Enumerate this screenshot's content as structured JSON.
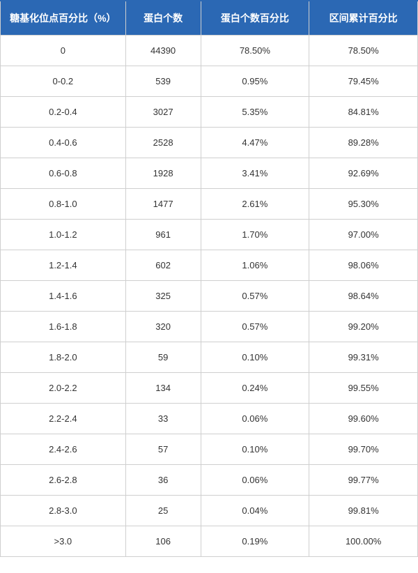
{
  "table": {
    "header_bg": "#2b68b4",
    "header_fg": "#ffffff",
    "border_color": "#cfcfcf",
    "cell_bg": "#ffffff",
    "cell_fg": "#333333",
    "header_fontsize": 14,
    "cell_fontsize": 13,
    "col_widths_percent": [
      30,
      18,
      26,
      26
    ],
    "columns": [
      "糖基化位点百分比（%）",
      "蛋白个数",
      "蛋白个数百分比",
      "区间累计百分比"
    ],
    "rows": [
      [
        "0",
        "44390",
        "78.50%",
        "78.50%"
      ],
      [
        "0-0.2",
        "539",
        "0.95%",
        "79.45%"
      ],
      [
        "0.2-0.4",
        "3027",
        "5.35%",
        "84.81%"
      ],
      [
        "0.4-0.6",
        "2528",
        "4.47%",
        "89.28%"
      ],
      [
        "0.6-0.8",
        "1928",
        "3.41%",
        "92.69%"
      ],
      [
        "0.8-1.0",
        "1477",
        "2.61%",
        "95.30%"
      ],
      [
        "1.0-1.2",
        "961",
        "1.70%",
        "97.00%"
      ],
      [
        "1.2-1.4",
        "602",
        "1.06%",
        "98.06%"
      ],
      [
        "1.4-1.6",
        "325",
        "0.57%",
        "98.64%"
      ],
      [
        "1.6-1.8",
        "320",
        "0.57%",
        "99.20%"
      ],
      [
        "1.8-2.0",
        "59",
        "0.10%",
        "99.31%"
      ],
      [
        "2.0-2.2",
        "134",
        "0.24%",
        "99.55%"
      ],
      [
        "2.2-2.4",
        "33",
        "0.06%",
        "99.60%"
      ],
      [
        "2.4-2.6",
        "57",
        "0.10%",
        "99.70%"
      ],
      [
        "2.6-2.8",
        "36",
        "0.06%",
        "99.77%"
      ],
      [
        "2.8-3.0",
        "25",
        "0.04%",
        "99.81%"
      ],
      [
        ">3.0",
        "106",
        "0.19%",
        "100.00%"
      ]
    ]
  }
}
